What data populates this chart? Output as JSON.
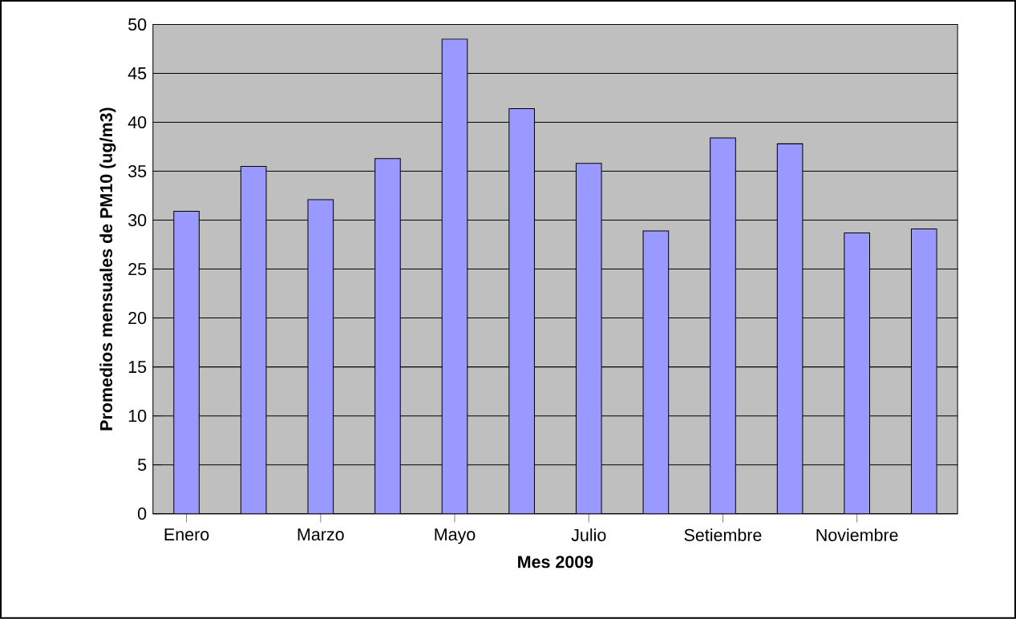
{
  "chart_data": {
    "type": "bar",
    "xlabel": "Mes 2009",
    "ylabel": "Promedios mensuales de PM10 (ug/m3)",
    "categories": [
      "Enero",
      null,
      "Marzo",
      null,
      "Mayo",
      null,
      "Julio",
      null,
      "Setiembre",
      null,
      "Noviembre",
      null
    ],
    "values": [
      30.9,
      35.5,
      32.1,
      36.3,
      48.5,
      41.4,
      35.8,
      28.9,
      38.4,
      37.8,
      28.7,
      29.1
    ],
    "color": "#9999ff",
    "ylim": [
      0,
      50
    ],
    "yticks": [
      0,
      5,
      10,
      15,
      20,
      25,
      30,
      35,
      40,
      45,
      50
    ],
    "grid": "y"
  }
}
